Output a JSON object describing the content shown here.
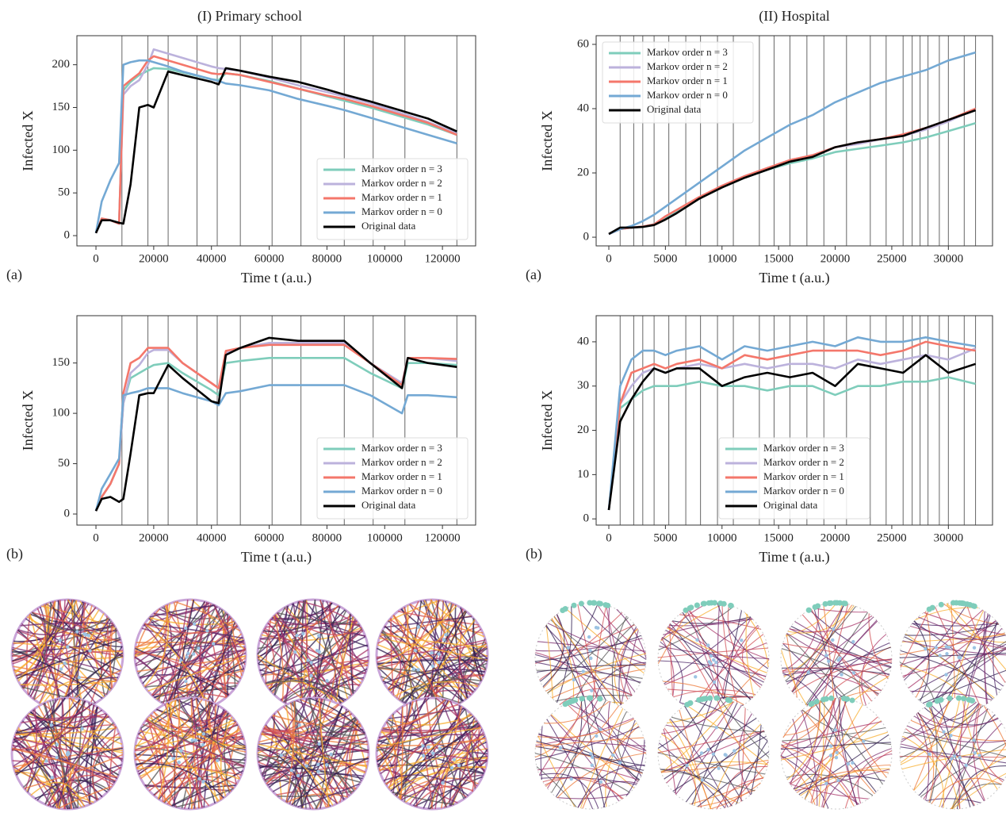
{
  "column_titles": [
    "(I) Primary school",
    "(II) Hospital"
  ],
  "chart_data": [
    {
      "type": "line",
      "panel_label": "(a)",
      "xlabel": "Time t (a.u.)",
      "ylabel": "Infected X",
      "xlim": [
        -6600,
        131500
      ],
      "ylim": [
        -12,
        234
      ],
      "xticks": [
        0,
        20000,
        40000,
        60000,
        80000,
        100000,
        120000
      ],
      "yticks": [
        0,
        50,
        100,
        150,
        200
      ],
      "vlines": [
        9000,
        18000,
        25000,
        35000,
        42000,
        50000,
        61000,
        71000,
        86000,
        96000,
        107000,
        125000
      ],
      "legend": "lower right",
      "x": [
        0,
        2000,
        5000,
        8000,
        9500,
        12000,
        15000,
        18000,
        20000,
        25000,
        30000,
        40000,
        42500,
        45000,
        50000,
        60000,
        70000,
        80000,
        86000,
        95000,
        106000,
        108000,
        115000,
        125000
      ],
      "series": [
        {
          "name": "Markov order n = 3",
          "color": "#7fcdbb",
          "values": [
            3,
            20,
            18,
            14,
            170,
            180,
            188,
            193,
            196,
            195,
            191,
            183,
            182,
            190,
            188,
            181,
            172,
            163,
            158,
            150,
            139,
            137,
            130,
            118
          ]
        },
        {
          "name": "Markov order n = 2",
          "color": "#bcb2dc",
          "values": [
            3,
            20,
            18,
            14,
            165,
            175,
            182,
            200,
            218,
            213,
            208,
            198,
            196,
            195,
            193,
            185,
            176,
            168,
            163,
            155,
            143,
            141,
            133,
            120
          ]
        },
        {
          "name": "Markov order n = 1",
          "color": "#f4776b",
          "values": [
            3,
            20,
            18,
            14,
            175,
            182,
            190,
            205,
            210,
            205,
            200,
            190,
            189,
            190,
            188,
            180,
            172,
            164,
            160,
            152,
            141,
            139,
            132,
            118
          ]
        },
        {
          "name": "Markov order n = 0",
          "color": "#74a9d4",
          "values": [
            3,
            40,
            65,
            85,
            200,
            203,
            205,
            205,
            203,
            198,
            192,
            183,
            181,
            178,
            176,
            170,
            160,
            152,
            147,
            138,
            127,
            125,
            118,
            108
          ]
        },
        {
          "name": "Original data",
          "color": "#000000",
          "values": [
            3,
            18,
            18,
            15,
            14,
            60,
            150,
            153,
            150,
            192,
            188,
            180,
            177,
            196,
            193,
            186,
            180,
            171,
            165,
            157,
            146,
            144,
            137,
            122
          ]
        }
      ]
    },
    {
      "type": "line",
      "panel_label": "(a)",
      "xlabel": "Time t (a.u.)",
      "ylabel": "Infected X",
      "xlim": [
        -1120,
        33900
      ],
      "ylim": [
        -2.7,
        62.7
      ],
      "xticks": [
        0,
        5000,
        10000,
        15000,
        20000,
        25000,
        30000
      ],
      "yticks": [
        0,
        20,
        40,
        60
      ],
      "vlines": [
        1000,
        2200,
        3000,
        4000,
        5300,
        6800,
        8100,
        9600,
        11000,
        13300,
        14600,
        16000,
        17500,
        19000,
        21000,
        23100,
        24500,
        26000,
        26800,
        27500,
        28200,
        29200,
        30000,
        31400,
        32400
      ],
      "legend": "upper left",
      "x": [
        0,
        1000,
        2000,
        3000,
        4000,
        5000,
        6000,
        8000,
        10000,
        12000,
        14000,
        16000,
        18000,
        20000,
        22000,
        24000,
        26000,
        28000,
        30000,
        32400
      ],
      "series": [
        {
          "name": "Markov order n = 3",
          "color": "#7fcdbb",
          "values": [
            1,
            2.5,
            3,
            3.3,
            4,
            6,
            8,
            12,
            15.5,
            18.5,
            21,
            23,
            24.5,
            26.5,
            27.5,
            28.5,
            29.5,
            31,
            33,
            35.5
          ]
        },
        {
          "name": "Markov order n = 2",
          "color": "#bcb2dc",
          "values": [
            1,
            2.5,
            3,
            3.3,
            4,
            6.5,
            8.5,
            12.5,
            16,
            19,
            21.5,
            24,
            25.5,
            28,
            29,
            30.5,
            31.5,
            33.5,
            36,
            40
          ]
        },
        {
          "name": "Markov order n = 1",
          "color": "#f4776b",
          "values": [
            1,
            2.5,
            3,
            3.3,
            4,
            6.5,
            8.5,
            12.5,
            16,
            19,
            21.5,
            24,
            25.5,
            28,
            29.5,
            30.5,
            32,
            34,
            36.5,
            40
          ]
        },
        {
          "name": "Markov order n = 0",
          "color": "#74a9d4",
          "values": [
            1,
            2.5,
            3.5,
            5,
            7,
            9.5,
            12,
            17,
            22,
            27,
            31,
            35,
            38,
            42,
            45,
            48,
            50,
            52,
            55,
            57.5
          ]
        },
        {
          "name": "Original data",
          "color": "#000000",
          "values": [
            1,
            3,
            3,
            3.2,
            3.8,
            5.5,
            7.5,
            12,
            15.5,
            18.5,
            21,
            23.5,
            25,
            28,
            29.5,
            30.5,
            31.5,
            34,
            36.5,
            39.5
          ]
        }
      ]
    },
    {
      "type": "line",
      "panel_label": "(b)",
      "xlabel": "Time t (a.u.)",
      "ylabel": "Infected X",
      "xlim": [
        -6600,
        131500
      ],
      "ylim": [
        -11,
        197
      ],
      "xticks": [
        0,
        20000,
        40000,
        60000,
        80000,
        100000,
        120000
      ],
      "yticks": [
        0,
        50,
        100,
        150
      ],
      "vlines": [
        9000,
        18000,
        25000,
        35000,
        42000,
        50000,
        61000,
        71000,
        86000,
        96000,
        107000,
        125000
      ],
      "legend": "lower right",
      "x": [
        0,
        2000,
        5000,
        8000,
        9500,
        12000,
        15000,
        18000,
        20000,
        25000,
        30000,
        40000,
        42500,
        45000,
        50000,
        60000,
        70000,
        80000,
        86000,
        95000,
        106000,
        108000,
        115000,
        125000
      ],
      "series": [
        {
          "name": "Markov order n = 3",
          "color": "#7fcdbb",
          "values": [
            3,
            17,
            30,
            50,
            110,
            135,
            140,
            145,
            148,
            150,
            140,
            123,
            118,
            150,
            152,
            155,
            155,
            155,
            155,
            140,
            125,
            150,
            150,
            148
          ]
        },
        {
          "name": "Markov order n = 2",
          "color": "#bcb2dc",
          "values": [
            3,
            17,
            30,
            50,
            110,
            140,
            148,
            160,
            163,
            163,
            150,
            130,
            125,
            160,
            165,
            170,
            170,
            170,
            170,
            150,
            130,
            155,
            155,
            152
          ]
        },
        {
          "name": "Markov order n = 1",
          "color": "#f4776b",
          "values": [
            3,
            17,
            30,
            50,
            120,
            150,
            155,
            165,
            165,
            165,
            150,
            130,
            125,
            162,
            165,
            168,
            168,
            168,
            168,
            150,
            128,
            155,
            155,
            154
          ]
        },
        {
          "name": "Markov order n = 0",
          "color": "#74a9d4",
          "values": [
            3,
            25,
            40,
            55,
            118,
            120,
            122,
            125,
            125,
            125,
            120,
            112,
            108,
            120,
            122,
            128,
            128,
            128,
            128,
            118,
            100,
            118,
            118,
            116
          ]
        },
        {
          "name": "Original data",
          "color": "#000000",
          "values": [
            3,
            15,
            17,
            12,
            15,
            60,
            118,
            120,
            120,
            148,
            135,
            112,
            110,
            158,
            165,
            175,
            172,
            172,
            172,
            150,
            125,
            155,
            150,
            146
          ]
        }
      ]
    },
    {
      "type": "line",
      "panel_label": "(b)",
      "xlabel": "Time t (a.u.)",
      "ylabel": "Infected X",
      "xlim": [
        -1120,
        33900
      ],
      "ylim": [
        -1.4,
        45.9
      ],
      "xticks": [
        0,
        5000,
        10000,
        15000,
        20000,
        25000,
        30000
      ],
      "yticks": [
        0,
        10,
        20,
        30,
        40
      ],
      "vlines": [
        1000,
        2200,
        3000,
        4000,
        5300,
        6800,
        8100,
        9600,
        11000,
        13300,
        14600,
        16000,
        17500,
        19000,
        21000,
        23100,
        24500,
        26000,
        26800,
        27500,
        28200,
        29200,
        30000,
        31400,
        32400
      ],
      "legend": "lower center",
      "x": [
        0,
        1000,
        2000,
        3000,
        4000,
        5000,
        6000,
        8000,
        10000,
        12000,
        14000,
        16000,
        18000,
        20000,
        22000,
        24000,
        26000,
        28000,
        30000,
        32400
      ],
      "series": [
        {
          "name": "Markov order n = 3",
          "color": "#7fcdbb",
          "values": [
            2,
            25,
            27,
            29,
            30,
            30,
            30,
            31,
            30,
            30,
            29,
            30,
            30,
            28,
            30,
            30,
            31,
            31,
            32,
            30.5
          ]
        },
        {
          "name": "Markov order n = 2",
          "color": "#bcb2dc",
          "values": [
            2,
            26,
            30,
            33,
            34,
            33,
            34,
            35,
            34,
            35,
            34,
            35,
            35,
            34,
            36,
            35,
            36,
            37,
            36,
            38.5
          ]
        },
        {
          "name": "Markov order n = 1",
          "color": "#f4776b",
          "values": [
            2,
            26,
            33,
            34,
            35,
            34,
            35,
            36,
            34,
            37,
            36,
            37,
            38,
            38,
            38,
            37,
            38,
            40,
            39,
            38
          ]
        },
        {
          "name": "Markov order n = 0",
          "color": "#74a9d4",
          "values": [
            2,
            30,
            36,
            38,
            38,
            37,
            38,
            39,
            36,
            39,
            38,
            39,
            40,
            39,
            41,
            40,
            40,
            41,
            40,
            39
          ]
        },
        {
          "name": "Original data",
          "color": "#000000",
          "values": [
            2,
            22,
            27,
            31,
            34,
            33,
            34,
            34,
            30,
            32,
            33,
            32,
            33,
            30,
            35,
            34,
            33,
            37,
            33,
            35
          ]
        }
      ]
    }
  ]
}
